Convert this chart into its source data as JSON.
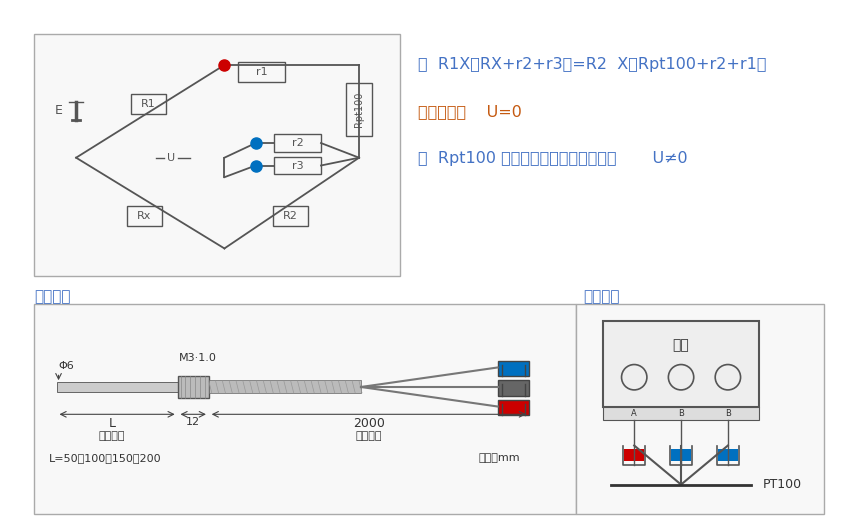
{
  "bg_color": "#ffffff",
  "text_color_blue": "#4472C4",
  "text_color_orange": "#C55A11",
  "formula_line": "当  R1X（RX+r2+r3）=R2  X（Rpt100+r2+r1）",
  "balance_line": "电桥平衡，    U=0",
  "unbalance_line": "当  Rpt100 受温变化后，电桥不平衡，       U≠0",
  "label_size_chart": "尺寸图：",
  "label_wiring_chart": "接线图：",
  "dim_phi": "Φ6",
  "dim_m3": "M3·1.0",
  "dim_L": "L",
  "dim_12": "12",
  "dim_2000": "2000",
  "dim_probe": "探头长度",
  "dim_lead": "引线长度",
  "dim_L_values": "L=50、100、150、200",
  "dim_unit": "单位：mm",
  "instrument_label": "仪表",
  "pt100_label": "PT100",
  "terminal_A": "A",
  "terminal_B": "B",
  "red_color": "#CC0000",
  "blue_color": "#0070C0",
  "line_color": "#555555",
  "box_edge": "#aaaaaa",
  "box_face": "#f8f8f8"
}
